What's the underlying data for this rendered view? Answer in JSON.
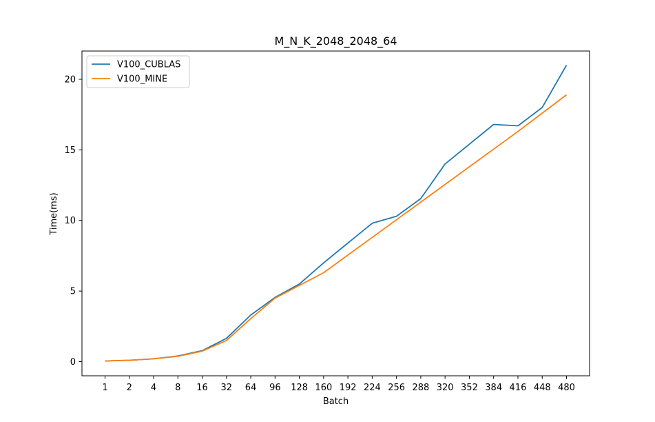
{
  "chart_data": {
    "type": "line",
    "title": "M_N_K_2048_2048_64",
    "xlabel": "Batch",
    "ylabel": "Time(ms)",
    "categories": [
      "1",
      "2",
      "4",
      "8",
      "16",
      "32",
      "64",
      "96",
      "128",
      "160",
      "192",
      "224",
      "256",
      "288",
      "320",
      "352",
      "384",
      "416",
      "448",
      "480"
    ],
    "yticks": [
      "0",
      "5",
      "10",
      "15",
      "20"
    ],
    "ylim": [
      -1.0,
      22.0
    ],
    "grid": false,
    "legend_position": "top-left",
    "series": [
      {
        "name": "V100_CUBLAS",
        "color": "#1f77b4",
        "values": [
          0.05,
          0.1,
          0.2,
          0.4,
          0.78,
          1.65,
          3.3,
          4.55,
          5.5,
          7.0,
          8.4,
          9.8,
          10.3,
          11.55,
          14.0,
          15.4,
          16.8,
          16.7,
          18.0,
          21.0
        ]
      },
      {
        "name": "V100_MINE",
        "color": "#ff7f0e",
        "values": [
          0.05,
          0.1,
          0.2,
          0.38,
          0.75,
          1.5,
          3.05,
          4.5,
          5.4,
          6.3,
          7.55,
          8.8,
          10.05,
          11.3,
          12.55,
          13.8,
          15.05,
          16.3,
          17.6,
          18.9
        ]
      }
    ]
  }
}
